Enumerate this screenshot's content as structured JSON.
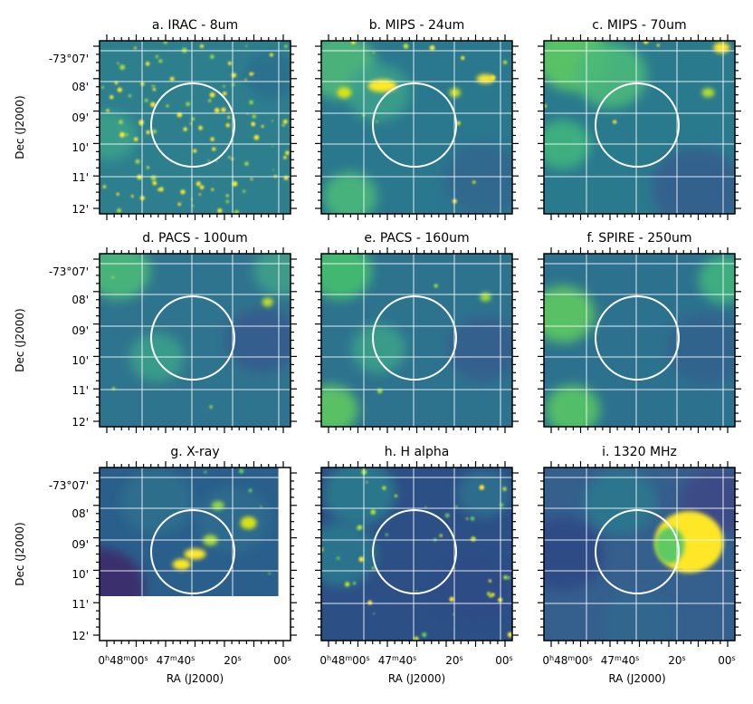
{
  "figure": {
    "ra_axis_label": "RA (J2000)",
    "dec_axis_label": "Dec (J2000)"
  },
  "chart_data": {
    "type": "image-grid",
    "description": "3x3 grid of multiwavelength sky images with circular aperture overlay",
    "x_ticks": [
      {
        "main": "0",
        "sup1": "h",
        "mid": "48",
        "sup2": "m",
        "end": "00",
        "sup3": "s"
      },
      {
        "main": "47",
        "sup1": "m",
        "mid": "40",
        "sup2": "s",
        "end": "",
        "sup3": ""
      },
      {
        "main": "20",
        "sup1": "s",
        "mid": "",
        "sup2": "",
        "end": "",
        "sup3": ""
      },
      {
        "main": "00",
        "sup1": "s",
        "mid": "",
        "sup2": "",
        "end": "",
        "sup3": ""
      }
    ],
    "y_ticks": [
      "-73°07'",
      "08'",
      "09'",
      "10'",
      "11'",
      "12'"
    ],
    "panels": [
      {
        "id": "a",
        "title": "a. IRAC - 8um"
      },
      {
        "id": "b",
        "title": "b. MIPS - 24um"
      },
      {
        "id": "c",
        "title": "c. MIPS - 70um"
      },
      {
        "id": "d",
        "title": "d. PACS - 100um"
      },
      {
        "id": "e",
        "title": "e. PACS - 160um"
      },
      {
        "id": "f",
        "title": "f. SPIRE - 250um"
      },
      {
        "id": "g",
        "title": "g. X-ray"
      },
      {
        "id": "h",
        "title": "h. H alpha"
      },
      {
        "id": "i",
        "title": "i. 1320 MHz"
      }
    ],
    "aperture": {
      "shape": "circle",
      "color": "#ffffff"
    },
    "colormap": [
      "#440154",
      "#3b528b",
      "#21918c",
      "#5ec962",
      "#fde725"
    ]
  }
}
